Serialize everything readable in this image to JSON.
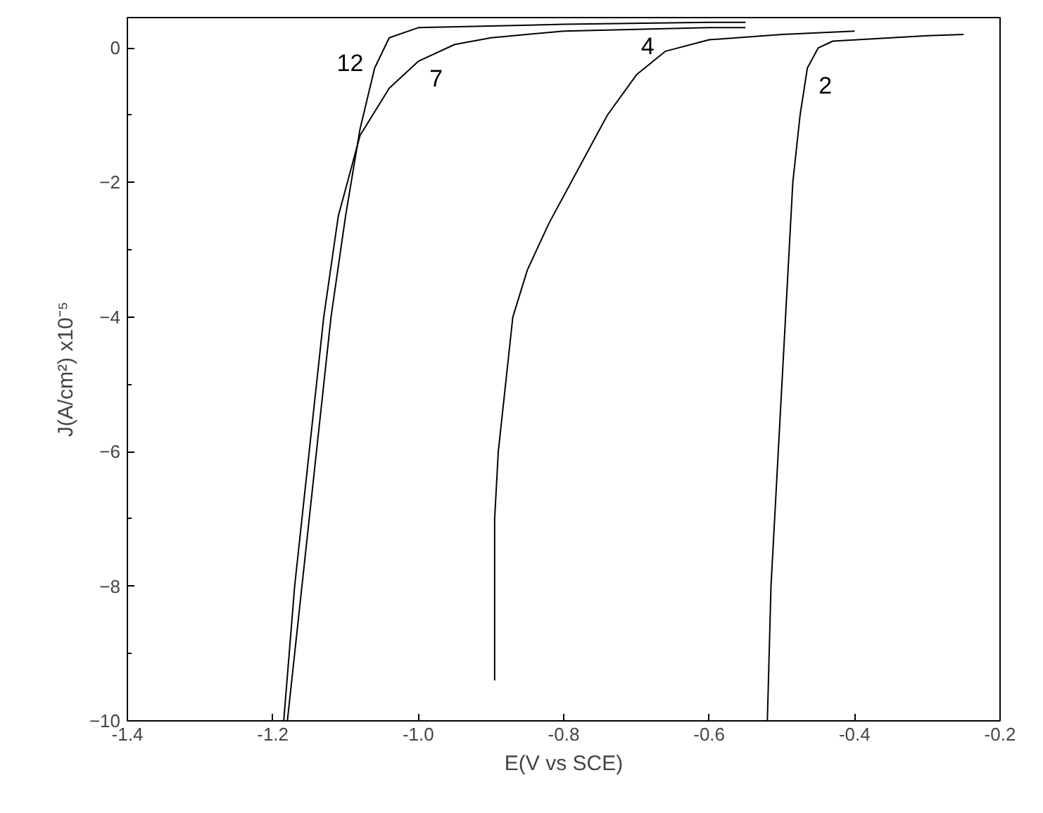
{
  "chart_data": {
    "type": "line",
    "xlabel": "E(V vs SCE)",
    "ylabel": "J(A/cm²) x10⁻⁵",
    "xlim": [
      -1.4,
      -0.2
    ],
    "ylim": [
      -10,
      0.45
    ],
    "xticks": [
      {
        "value": -1.4,
        "label": "-1.4"
      },
      {
        "value": -1.2,
        "label": "-1.2"
      },
      {
        "value": -1.0,
        "label": "-1.0"
      },
      {
        "value": -0.8,
        "label": "-0.8"
      },
      {
        "value": -0.6,
        "label": "-0.6"
      },
      {
        "value": -0.4,
        "label": "-0.4"
      },
      {
        "value": -0.2,
        "label": "-0.2"
      }
    ],
    "yticks": [
      -10,
      -8,
      -6,
      -4,
      -2,
      0
    ],
    "grid": false,
    "marker": "none",
    "line_style": "solid",
    "series": [
      {
        "name": "12",
        "color": "#000000",
        "x": [
          -1.18,
          -1.16,
          -1.14,
          -1.12,
          -1.1,
          -1.08,
          -1.06,
          -1.04,
          -1.0,
          -0.8,
          -0.6,
          -0.55
        ],
        "values": [
          -10,
          -8,
          -6,
          -4,
          -2.5,
          -1.2,
          -0.3,
          0.15,
          0.3,
          0.35,
          0.38,
          0.38
        ]
      },
      {
        "name": "7",
        "color": "#000000",
        "x": [
          -1.185,
          -1.17,
          -1.15,
          -1.13,
          -1.11,
          -1.08,
          -1.04,
          -1.0,
          -0.95,
          -0.9,
          -0.8,
          -0.6,
          -0.55
        ],
        "values": [
          -10,
          -8,
          -6,
          -4,
          -2.5,
          -1.3,
          -0.6,
          -0.2,
          0.05,
          0.15,
          0.25,
          0.3,
          0.3
        ]
      },
      {
        "name": "4",
        "color": "#000000",
        "x": [
          -0.895,
          -0.895,
          -0.89,
          -0.88,
          -0.87,
          -0.85,
          -0.82,
          -0.78,
          -0.74,
          -0.7,
          -0.66,
          -0.6,
          -0.5,
          -0.4
        ],
        "values": [
          -9.4,
          -7,
          -6,
          -5,
          -4,
          -3.3,
          -2.6,
          -1.8,
          -1.0,
          -0.4,
          -0.05,
          0.12,
          0.2,
          0.25
        ]
      },
      {
        "name": "2",
        "color": "#000000",
        "x": [
          -0.52,
          -0.515,
          -0.505,
          -0.495,
          -0.485,
          -0.475,
          -0.465,
          -0.45,
          -0.43,
          -0.35,
          -0.3,
          -0.25
        ],
        "values": [
          -10,
          -8,
          -6,
          -4,
          -2,
          -1,
          -0.3,
          0.0,
          0.1,
          0.15,
          0.18,
          0.2
        ]
      }
    ]
  }
}
